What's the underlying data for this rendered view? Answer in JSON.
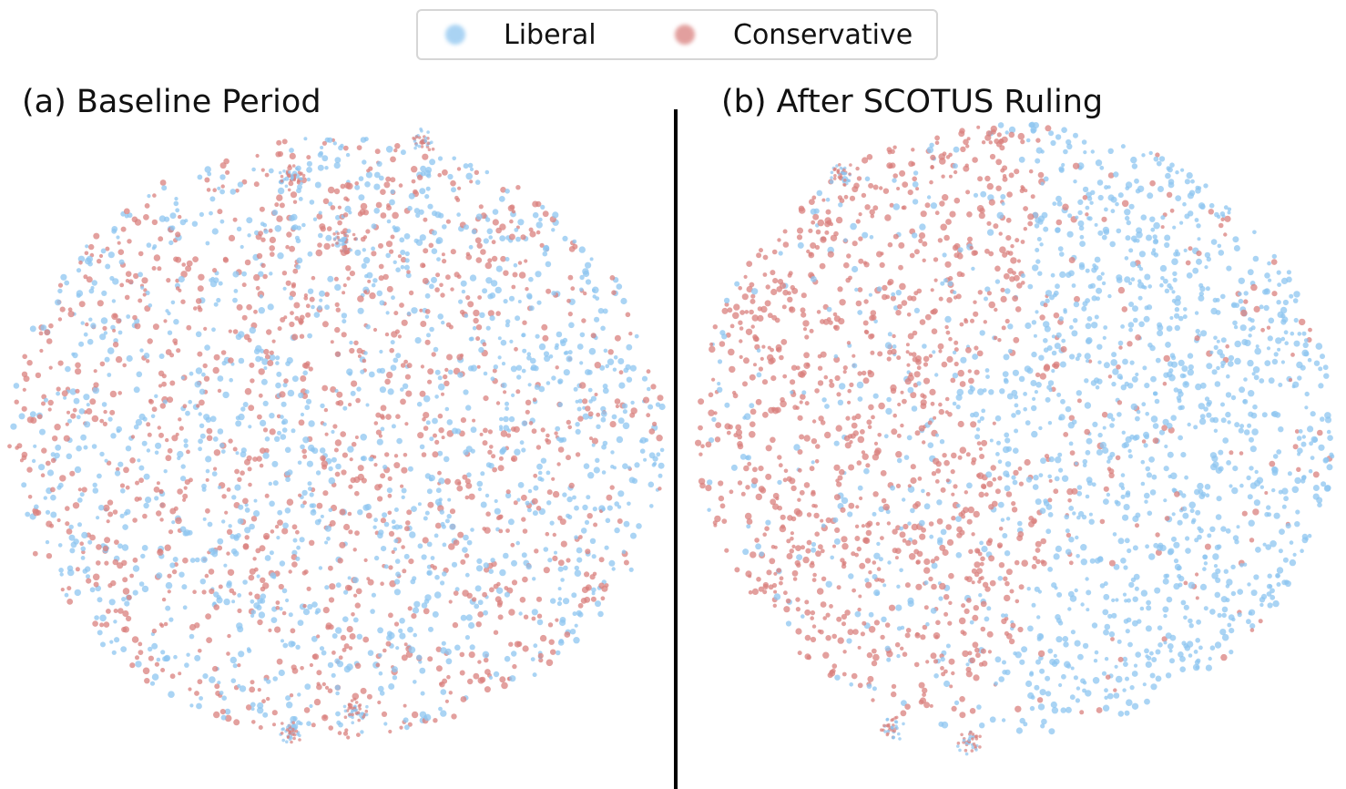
{
  "legend": {
    "items": [
      {
        "label": "Liberal",
        "color": "#8ec5f0"
      },
      {
        "label": "Conservative",
        "color": "#d9807e"
      }
    ]
  },
  "chart_data": [
    {
      "type": "scatter",
      "title": "(a) Baseline Period",
      "xlabel": "",
      "ylabel": "",
      "grid": false,
      "axes_visible": false,
      "legend_placement": "top-center",
      "series": [
        {
          "name": "Liberal",
          "color": "#8ec5f0"
        },
        {
          "name": "Conservative",
          "color": "#d9807e"
        }
      ],
      "distribution": "Liberal and Conservative points heavily intermixed throughout the embedding",
      "clusters": [
        {
          "x": 0.0,
          "y": 0.0,
          "r": 1.0,
          "liberal_share": 0.52
        },
        {
          "x": 0.65,
          "y": 0.3,
          "r": 0.3,
          "liberal_share": 0.75
        },
        {
          "x": -0.55,
          "y": 0.1,
          "r": 0.35,
          "liberal_share": 0.4
        },
        {
          "x": 0.1,
          "y": -0.15,
          "r": 0.35,
          "liberal_share": 0.45
        },
        {
          "x": 0.7,
          "y": -0.35,
          "r": 0.25,
          "liberal_share": 0.7
        }
      ]
    },
    {
      "type": "scatter",
      "title": "(b) After SCOTUS Ruling",
      "xlabel": "",
      "ylabel": "",
      "grid": false,
      "axes_visible": false,
      "series": [
        {
          "name": "Liberal",
          "color": "#8ec5f0"
        },
        {
          "name": "Conservative",
          "color": "#d9807e"
        }
      ],
      "distribution": "Conservative points concentrated on the left, Liberal points dominate the right",
      "clusters": [
        {
          "x": -0.65,
          "y": 0.0,
          "r": 0.4,
          "liberal_share": 0.15
        },
        {
          "x": -0.3,
          "y": 0.4,
          "r": 0.3,
          "liberal_share": 0.2
        },
        {
          "x": -0.2,
          "y": -0.25,
          "r": 0.3,
          "liberal_share": 0.3
        },
        {
          "x": 0.45,
          "y": 0.2,
          "r": 0.4,
          "liberal_share": 0.88
        },
        {
          "x": 0.5,
          "y": -0.45,
          "r": 0.35,
          "liberal_share": 0.92
        },
        {
          "x": 0.1,
          "y": 0.0,
          "r": 0.3,
          "liberal_share": 0.7
        }
      ]
    }
  ]
}
